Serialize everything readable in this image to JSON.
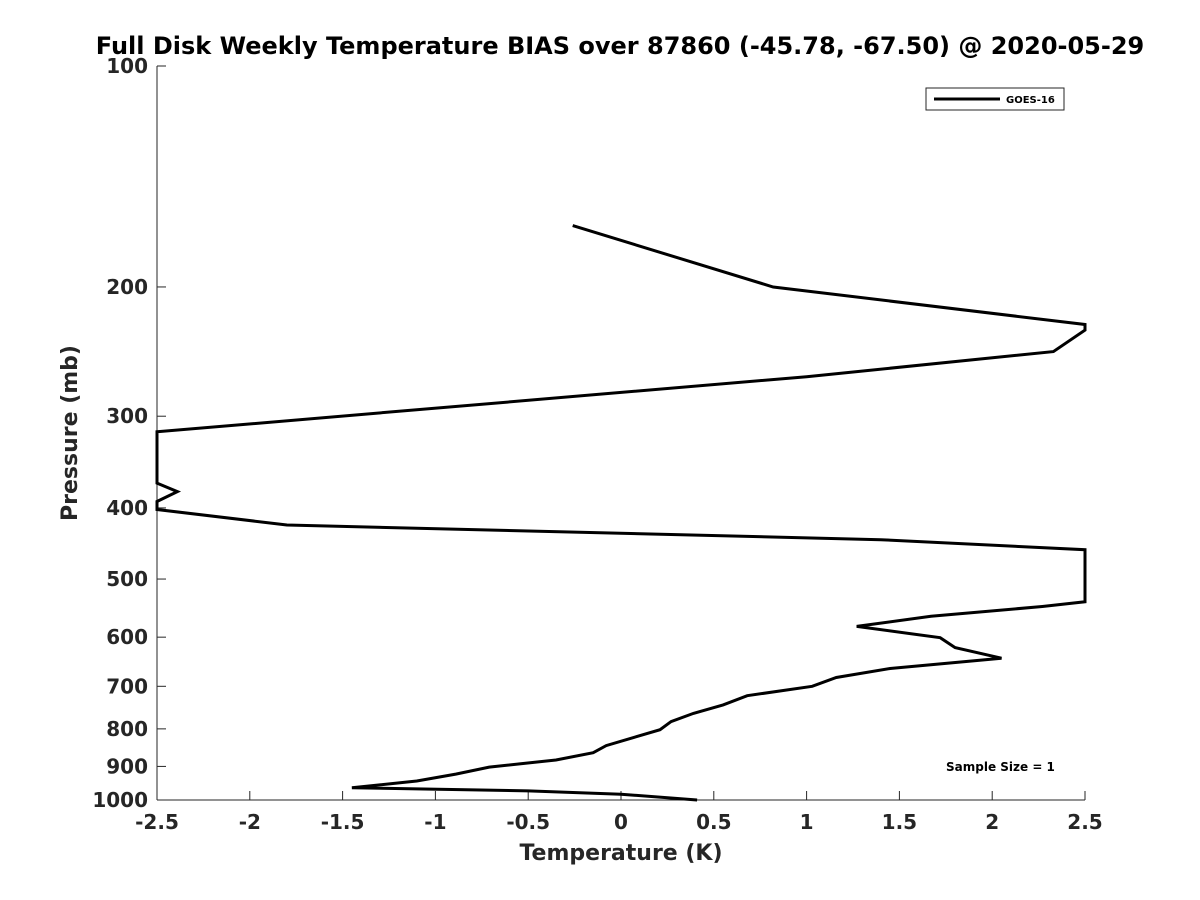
{
  "chart_data": {
    "type": "line",
    "title": "Full Disk Weekly Temperature BIAS over 87860 (-45.78, -67.50) @ 2020-05-29",
    "xlabel": "Temperature (K)",
    "ylabel": "Pressure (mb)",
    "xlim": [
      -2.5,
      2.5
    ],
    "ylim": [
      100,
      1000
    ],
    "yscale": "log",
    "y_reversed": true,
    "x_ticks": [
      -2.5,
      -2,
      -1.5,
      -1,
      -0.5,
      0,
      0.5,
      1,
      1.5,
      2,
      2.5
    ],
    "x_tick_labels": [
      "-2.5",
      "-2",
      "-1.5",
      "-1",
      "-0.5",
      "0",
      "0.5",
      "1",
      "1.5",
      "2",
      "2.5"
    ],
    "y_ticks": [
      100,
      200,
      300,
      400,
      500,
      600,
      700,
      800,
      900,
      1000
    ],
    "y_tick_labels": [
      "100",
      "200",
      "300",
      "400",
      "500",
      "600",
      "700",
      "800",
      "900",
      "1000"
    ],
    "legend": {
      "location": "top-right",
      "entries": [
        "GOES-16"
      ]
    },
    "annotation": "Sample Size = 1",
    "series": [
      {
        "name": "GOES-16",
        "color": "#000000",
        "points": [
          {
            "x": -0.26,
            "p": 165
          },
          {
            "x": 0.82,
            "p": 200
          },
          {
            "x": 2.5,
            "p": 225
          },
          {
            "x": 2.5,
            "p": 229
          },
          {
            "x": 2.33,
            "p": 245
          },
          {
            "x": 1.0,
            "p": 265
          },
          {
            "x": -2.5,
            "p": 315
          },
          {
            "x": -2.5,
            "p": 370
          },
          {
            "x": -2.39,
            "p": 380
          },
          {
            "x": -2.5,
            "p": 392
          },
          {
            "x": -2.5,
            "p": 402
          },
          {
            "x": -1.8,
            "p": 422
          },
          {
            "x": 1.4,
            "p": 442
          },
          {
            "x": 2.5,
            "p": 456
          },
          {
            "x": 2.5,
            "p": 537
          },
          {
            "x": 2.27,
            "p": 545
          },
          {
            "x": 1.67,
            "p": 562
          },
          {
            "x": 1.27,
            "p": 580
          },
          {
            "x": 1.72,
            "p": 601
          },
          {
            "x": 1.8,
            "p": 620
          },
          {
            "x": 2.05,
            "p": 641
          },
          {
            "x": 1.45,
            "p": 662
          },
          {
            "x": 1.16,
            "p": 681
          },
          {
            "x": 1.03,
            "p": 700
          },
          {
            "x": 0.68,
            "p": 721
          },
          {
            "x": 0.55,
            "p": 742
          },
          {
            "x": 0.39,
            "p": 762
          },
          {
            "x": 0.27,
            "p": 782
          },
          {
            "x": 0.21,
            "p": 802
          },
          {
            "x": -0.08,
            "p": 843
          },
          {
            "x": -0.15,
            "p": 862
          },
          {
            "x": -0.35,
            "p": 882
          },
          {
            "x": -0.71,
            "p": 902
          },
          {
            "x": -0.89,
            "p": 922
          },
          {
            "x": -1.1,
            "p": 942
          },
          {
            "x": -1.45,
            "p": 962
          },
          {
            "x": -0.5,
            "p": 972
          },
          {
            "x": 0.0,
            "p": 982
          },
          {
            "x": 0.41,
            "p": 1000
          }
        ]
      }
    ]
  }
}
